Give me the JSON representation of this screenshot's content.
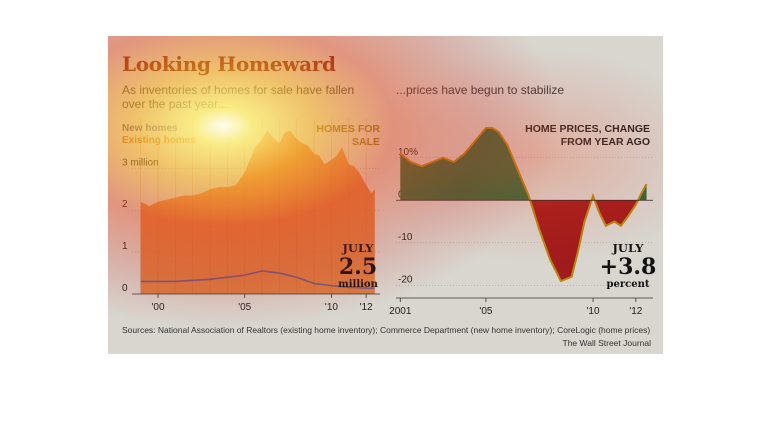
{
  "title": "Looking Homeward",
  "subtitle_left": "As inventories of homes for sale have fallen over the past year...",
  "subtitle_right": "...prices have begun to stabilize",
  "source": "Sources: National Association of Realtors (existing home inventory); Commerce Department (new home inventory); CoreLogic (home prices)",
  "credit": "The Wall Street Journal",
  "colors": {
    "panel": "#d8d6cf",
    "existing": "#d9702a",
    "new": "#6b5b8a",
    "positive": "#2e6b3a",
    "negative": "#a01b1b",
    "line": "#b8860b"
  },
  "chart_data": [
    {
      "type": "area",
      "title": "HOMES FOR SALE",
      "legend": [
        "New homes",
        "Existing homes"
      ],
      "y_ticks": [
        "0",
        "1",
        "2",
        "3 million"
      ],
      "ylim": [
        0,
        4.2
      ],
      "x_ticks": [
        {
          "x": 2000,
          "label": "'00"
        },
        {
          "x": 2005,
          "label": "'05"
        },
        {
          "x": 2010,
          "label": "'10"
        },
        {
          "x": 2012,
          "label": "'12"
        }
      ],
      "xlim": [
        1998.5,
        2012.8
      ],
      "series": [
        {
          "name": "Existing homes",
          "x": [
            1999,
            1999.5,
            2000,
            2000.5,
            2001,
            2001.5,
            2002,
            2002.5,
            2003,
            2003.5,
            2004,
            2004.5,
            2005,
            2005.3,
            2005.6,
            2006,
            2006.3,
            2006.6,
            2007,
            2007.3,
            2007.6,
            2008,
            2008.3,
            2008.6,
            2009,
            2009.3,
            2009.6,
            2010,
            2010.3,
            2010.6,
            2011,
            2011.3,
            2011.6,
            2012,
            2012.3,
            2012.5
          ],
          "values": [
            2.2,
            2.1,
            2.2,
            2.25,
            2.3,
            2.35,
            2.35,
            2.4,
            2.5,
            2.55,
            2.55,
            2.6,
            2.9,
            3.2,
            3.5,
            3.7,
            3.9,
            3.75,
            3.6,
            3.85,
            3.9,
            3.7,
            3.6,
            3.55,
            3.35,
            3.3,
            3.1,
            3.2,
            3.3,
            3.5,
            3.1,
            3.05,
            2.9,
            2.6,
            2.4,
            2.5
          ]
        },
        {
          "name": "New homes",
          "x": [
            1999,
            2001,
            2003,
            2005,
            2006,
            2007,
            2008,
            2009,
            2010,
            2011,
            2012,
            2012.5
          ],
          "values": [
            0.3,
            0.3,
            0.35,
            0.45,
            0.55,
            0.5,
            0.4,
            0.25,
            0.2,
            0.16,
            0.14,
            0.14
          ]
        }
      ],
      "callout": {
        "label": "JULY",
        "value": "2.5",
        "unit": "million"
      }
    },
    {
      "type": "area",
      "title": "HOME PRICES, CHANGE FROM YEAR AGO",
      "y_ticks": [
        "10%",
        "0",
        "-10",
        "-20"
      ],
      "ylim": [
        -23,
        17
      ],
      "x_ticks": [
        {
          "x": 2001,
          "label": "2001"
        },
        {
          "x": 2005,
          "label": "'05"
        },
        {
          "x": 2010,
          "label": "'10"
        },
        {
          "x": 2012,
          "label": "'12"
        }
      ],
      "xlim": [
        2000.8,
        2012.8
      ],
      "series": [
        {
          "name": "Home prices, change from year ago",
          "x": [
            2001,
            2001.5,
            2002,
            2002.5,
            2003,
            2003.5,
            2004,
            2004.5,
            2005,
            2005.3,
            2005.6,
            2006,
            2006.5,
            2007,
            2007.5,
            2008,
            2008.5,
            2009,
            2009.3,
            2009.6,
            2010,
            2010.3,
            2010.6,
            2011,
            2011.3,
            2011.6,
            2012,
            2012.3,
            2012.5
          ],
          "values": [
            11,
            9,
            8,
            9,
            10,
            9,
            11,
            14,
            17,
            17,
            16,
            13,
            7,
            1,
            -7,
            -14,
            -19,
            -18,
            -12,
            -5,
            1,
            -3,
            -6,
            -5,
            -6,
            -4,
            -1,
            2,
            3.8
          ]
        }
      ],
      "callout": {
        "label": "JULY",
        "value": "+3.8",
        "unit": "percent"
      }
    }
  ]
}
